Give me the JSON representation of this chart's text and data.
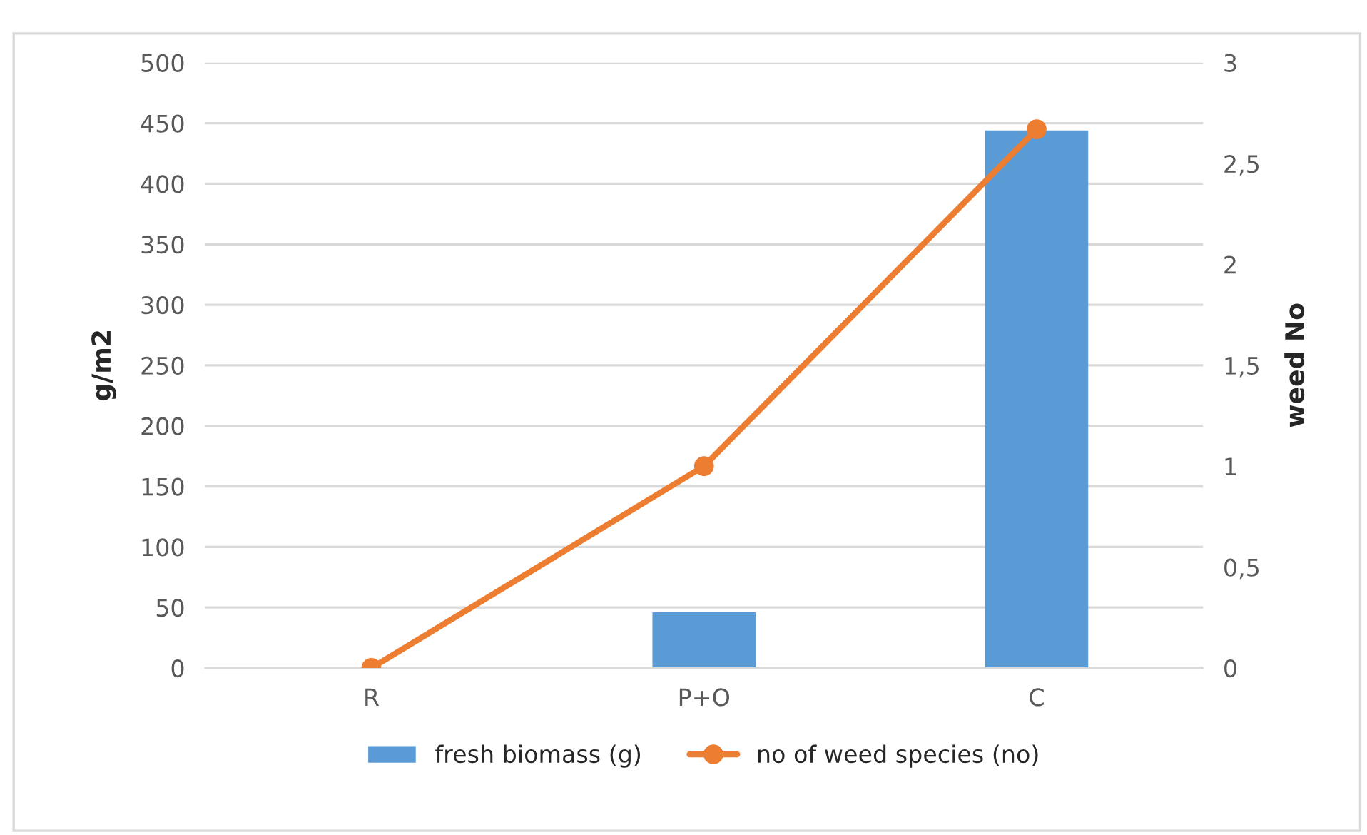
{
  "chart_data": {
    "type": "bar",
    "categories": [
      "R",
      "P+O",
      "C"
    ],
    "series": [
      {
        "name": "fresh biomass (g)",
        "color": "#5b9bd5",
        "values": [
          0,
          46,
          444
        ]
      },
      {
        "name": "no of weed species (no)",
        "color": "#ed7d31",
        "values": [
          0,
          1.0,
          2.67
        ],
        "type": "line",
        "axis": "y2",
        "marker": "circle"
      }
    ],
    "ylabel": "g/m2",
    "y2label": "weed No",
    "ylim": [
      0,
      500
    ],
    "yticks": [
      0,
      50,
      100,
      150,
      200,
      250,
      300,
      350,
      400,
      450,
      500
    ],
    "y2lim": [
      0,
      3
    ],
    "y2ticks": [
      0,
      {
        "value": 0.5,
        "label": "0,5"
      },
      1,
      {
        "value": 1.5,
        "label": "1,5"
      },
      2,
      {
        "value": 2.5,
        "label": "2,5"
      },
      3
    ],
    "grid": "y",
    "legend": "bottom"
  }
}
